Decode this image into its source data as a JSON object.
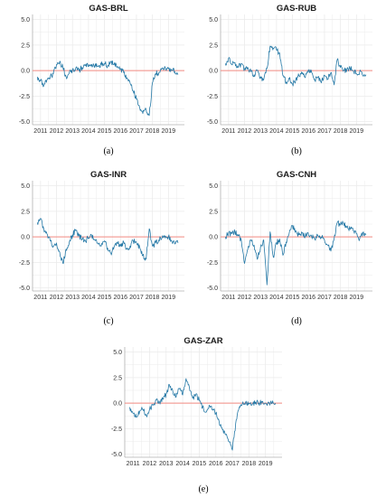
{
  "figure": {
    "captions": [
      "(a)",
      "(b)",
      "(c)",
      "(d)",
      "(e)"
    ]
  },
  "colors": {
    "line": "#2478a6",
    "zero_line": "#f28b82",
    "grid": "#ebebeb",
    "axis": "#b0b0b0"
  },
  "chart_data": [
    {
      "type": "line",
      "title": "GAS-BRL",
      "caption": "(a)",
      "xlabel": "",
      "ylabel": "",
      "xlim": [
        2010.5,
        2020.0
      ],
      "ylim": [
        -5.3,
        5.5
      ],
      "x_ticks": [
        "2011",
        "2012",
        "2013",
        "2014",
        "2015",
        "2016",
        "2017",
        "2018",
        "2019"
      ],
      "y_ticks": [
        "5.0",
        "2.5",
        "0.0",
        "-2.5",
        "-5.0"
      ],
      "y_tick_values": [
        5.0,
        2.5,
        0.0,
        -2.5,
        -5.0
      ],
      "grid": true,
      "reference_line": 0,
      "series": [
        {
          "x": [
            2010.8,
            2011.0,
            2011.2,
            2011.4,
            2011.6,
            2011.8,
            2012.0,
            2012.2,
            2012.4,
            2012.6,
            2012.8,
            2013.0,
            2013.2,
            2013.4,
            2013.6,
            2013.8,
            2014.0,
            2014.2,
            2014.4,
            2014.6,
            2014.8,
            2015.0,
            2015.2,
            2015.4,
            2015.6,
            2015.8,
            2016.0,
            2016.2,
            2016.4,
            2016.6,
            2016.8,
            2017.0,
            2017.2,
            2017.4,
            2017.6,
            2017.8,
            2018.0,
            2018.2,
            2018.4,
            2018.6,
            2018.8,
            2019.0,
            2019.2,
            2019.4,
            2019.6
          ],
          "y": [
            -0.6,
            -1.0,
            -1.5,
            -0.9,
            -0.7,
            -0.3,
            0.6,
            0.9,
            0.3,
            -0.6,
            -0.2,
            0.1,
            0.2,
            0.0,
            0.3,
            0.5,
            0.4,
            0.6,
            0.5,
            0.4,
            0.6,
            0.7,
            0.5,
            0.9,
            0.6,
            0.4,
            0.2,
            -0.2,
            -0.7,
            -1.2,
            -2.0,
            -2.8,
            -3.6,
            -4.2,
            -3.8,
            -4.4,
            -1.2,
            -0.3,
            -0.2,
            0.2,
            0.3,
            0.2,
            0.1,
            -0.1,
            -0.4
          ]
        }
      ]
    },
    {
      "type": "line",
      "title": "GAS-RUB",
      "caption": "(b)",
      "xlabel": "",
      "ylabel": "",
      "xlim": [
        2010.5,
        2020.0
      ],
      "ylim": [
        -5.3,
        5.5
      ],
      "x_ticks": [
        "2011",
        "2012",
        "2013",
        "2014",
        "2015",
        "2016",
        "2017",
        "2018",
        "2019"
      ],
      "y_ticks": [
        "5.0",
        "2.5",
        "0.0",
        "-2.5",
        "-5.0"
      ],
      "y_tick_values": [
        5.0,
        2.5,
        0.0,
        -2.5,
        -5.0
      ],
      "grid": true,
      "reference_line": 0,
      "series": [
        {
          "x": [
            2010.8,
            2011.0,
            2011.2,
            2011.4,
            2011.6,
            2011.8,
            2012.0,
            2012.2,
            2012.4,
            2012.6,
            2012.8,
            2013.0,
            2013.2,
            2013.4,
            2013.6,
            2013.8,
            2014.0,
            2014.2,
            2014.4,
            2014.6,
            2014.8,
            2015.0,
            2015.2,
            2015.4,
            2015.6,
            2015.8,
            2016.0,
            2016.2,
            2016.4,
            2016.6,
            2016.8,
            2017.0,
            2017.2,
            2017.4,
            2017.6,
            2017.8,
            2018.0,
            2018.2,
            2018.4,
            2018.6,
            2018.8,
            2019.0,
            2019.2,
            2019.4,
            2019.6
          ],
          "y": [
            0.7,
            1.2,
            0.6,
            0.8,
            0.3,
            0.7,
            0.1,
            0.3,
            -0.1,
            -0.4,
            0.0,
            -0.6,
            -0.9,
            0.2,
            2.4,
            2.2,
            2.0,
            1.7,
            -0.5,
            -1.1,
            -0.8,
            -1.3,
            -0.9,
            -0.5,
            -0.3,
            -0.7,
            0.1,
            -0.2,
            -0.9,
            -0.6,
            -1.2,
            -0.5,
            -0.8,
            -0.2,
            -1.4,
            1.1,
            0.3,
            0.0,
            0.1,
            0.2,
            0.0,
            -0.3,
            -0.1,
            -0.5,
            -0.4
          ]
        }
      ]
    },
    {
      "type": "line",
      "title": "GAS-INR",
      "caption": "(c)",
      "xlabel": "",
      "ylabel": "",
      "xlim": [
        2010.5,
        2020.0
      ],
      "ylim": [
        -5.3,
        5.5
      ],
      "x_ticks": [
        "2011",
        "2012",
        "2013",
        "2014",
        "2015",
        "2016",
        "2017",
        "2018",
        "2019"
      ],
      "y_ticks": [
        "5.0",
        "2.5",
        "0.0",
        "-2.5",
        "-5.0"
      ],
      "y_tick_values": [
        5.0,
        2.5,
        0.0,
        -2.5,
        -5.0
      ],
      "grid": true,
      "reference_line": 0,
      "series": [
        {
          "x": [
            2010.8,
            2011.0,
            2011.2,
            2011.4,
            2011.6,
            2011.8,
            2012.0,
            2012.2,
            2012.4,
            2012.6,
            2012.8,
            2013.0,
            2013.2,
            2013.4,
            2013.6,
            2013.8,
            2014.0,
            2014.2,
            2014.4,
            2014.6,
            2014.8,
            2015.0,
            2015.2,
            2015.4,
            2015.6,
            2015.8,
            2016.0,
            2016.2,
            2016.4,
            2016.6,
            2016.8,
            2017.0,
            2017.2,
            2017.4,
            2017.6,
            2017.8,
            2018.0,
            2018.2,
            2018.4,
            2018.6,
            2018.8,
            2019.0,
            2019.2,
            2019.4,
            2019.6
          ],
          "y": [
            1.4,
            1.8,
            0.8,
            0.3,
            -0.4,
            -0.9,
            -0.6,
            -1.5,
            -2.6,
            -1.2,
            -0.5,
            0.2,
            0.7,
            0.1,
            -0.2,
            -0.4,
            -0.1,
            0.1,
            -0.3,
            -0.7,
            -0.9,
            -0.4,
            -1.1,
            -1.6,
            -1.0,
            -0.6,
            -0.9,
            -0.5,
            -1.2,
            -0.9,
            -0.4,
            -0.6,
            -1.0,
            -1.8,
            -2.2,
            0.8,
            -0.9,
            -0.6,
            -0.3,
            -0.1,
            0.1,
            0.0,
            -0.4,
            -0.7,
            -0.6
          ]
        }
      ]
    },
    {
      "type": "line",
      "title": "GAS-CNH",
      "caption": "(d)",
      "xlabel": "",
      "ylabel": "",
      "xlim": [
        2010.5,
        2020.0
      ],
      "ylim": [
        -5.3,
        5.5
      ],
      "x_ticks": [
        "2011",
        "2012",
        "2013",
        "2014",
        "2015",
        "2016",
        "2017",
        "2018",
        "2019"
      ],
      "y_ticks": [
        "5.0",
        "2.5",
        "0.0",
        "-2.5",
        "-5.0"
      ],
      "y_tick_values": [
        5.0,
        2.5,
        0.0,
        -2.5,
        -5.0
      ],
      "grid": true,
      "reference_line": 0,
      "series": [
        {
          "x": [
            2010.8,
            2011.0,
            2011.2,
            2011.4,
            2011.6,
            2011.8,
            2012.0,
            2012.2,
            2012.4,
            2012.6,
            2012.8,
            2013.0,
            2013.2,
            2013.4,
            2013.6,
            2013.8,
            2014.0,
            2014.2,
            2014.4,
            2014.6,
            2014.8,
            2015.0,
            2015.2,
            2015.4,
            2015.6,
            2015.8,
            2016.0,
            2016.2,
            2016.4,
            2016.6,
            2016.8,
            2017.0,
            2017.2,
            2017.4,
            2017.6,
            2017.8,
            2018.0,
            2018.2,
            2018.4,
            2018.6,
            2018.8,
            2019.0,
            2019.2,
            2019.4,
            2019.6
          ],
          "y": [
            0.0,
            0.4,
            0.3,
            0.5,
            0.2,
            -0.4,
            -2.6,
            -1.2,
            -0.3,
            -0.8,
            -2.2,
            -1.0,
            -0.3,
            -4.7,
            0.5,
            -2.0,
            -0.6,
            -0.2,
            -1.8,
            -0.5,
            0.4,
            1.1,
            0.6,
            0.2,
            0.4,
            0.1,
            0.2,
            0.0,
            -0.2,
            0.1,
            0.0,
            -0.3,
            -0.8,
            -1.4,
            -0.2,
            1.4,
            1.2,
            1.3,
            1.0,
            0.8,
            0.6,
            0.3,
            -0.2,
            0.4,
            0.2
          ]
        }
      ]
    },
    {
      "type": "line",
      "title": "GAS-ZAR",
      "caption": "(e)",
      "xlabel": "",
      "ylabel": "",
      "xlim": [
        2010.5,
        2020.0
      ],
      "ylim": [
        -5.3,
        5.5
      ],
      "x_ticks": [
        "2011",
        "2012",
        "2013",
        "2014",
        "2015",
        "2016",
        "2017",
        "2018",
        "2019"
      ],
      "y_ticks": [
        "5.0",
        "2.5",
        "0.0",
        "-2.5",
        "-5.0"
      ],
      "y_tick_values": [
        5.0,
        2.5,
        0.0,
        -2.5,
        -5.0
      ],
      "grid": true,
      "reference_line": 0,
      "series": [
        {
          "x": [
            2010.8,
            2011.0,
            2011.2,
            2011.4,
            2011.6,
            2011.8,
            2012.0,
            2012.2,
            2012.4,
            2012.6,
            2012.8,
            2013.0,
            2013.2,
            2013.4,
            2013.6,
            2013.8,
            2014.0,
            2014.2,
            2014.4,
            2014.6,
            2014.8,
            2015.0,
            2015.2,
            2015.4,
            2015.6,
            2015.8,
            2016.0,
            2016.2,
            2016.4,
            2016.6,
            2016.8,
            2017.0,
            2017.2,
            2017.4,
            2017.6,
            2017.8,
            2018.0,
            2018.2,
            2018.4,
            2018.6,
            2018.8,
            2019.0,
            2019.2,
            2019.4,
            2019.6
          ],
          "y": [
            -0.4,
            -1.0,
            -1.4,
            -0.8,
            -0.6,
            -1.2,
            -0.6,
            -0.2,
            0.3,
            0.1,
            0.4,
            0.9,
            1.8,
            1.2,
            0.6,
            1.4,
            0.8,
            2.4,
            1.6,
            0.5,
            0.9,
            0.3,
            -0.4,
            -0.9,
            -0.2,
            -0.6,
            -1.0,
            -1.8,
            -2.6,
            -3.1,
            -3.8,
            -4.6,
            -2.0,
            -0.5,
            -0.1,
            0.1,
            0.0,
            -0.1,
            0.1,
            0.0,
            0.1,
            0.0,
            0.1,
            0.0,
            0.0
          ]
        }
      ]
    }
  ]
}
